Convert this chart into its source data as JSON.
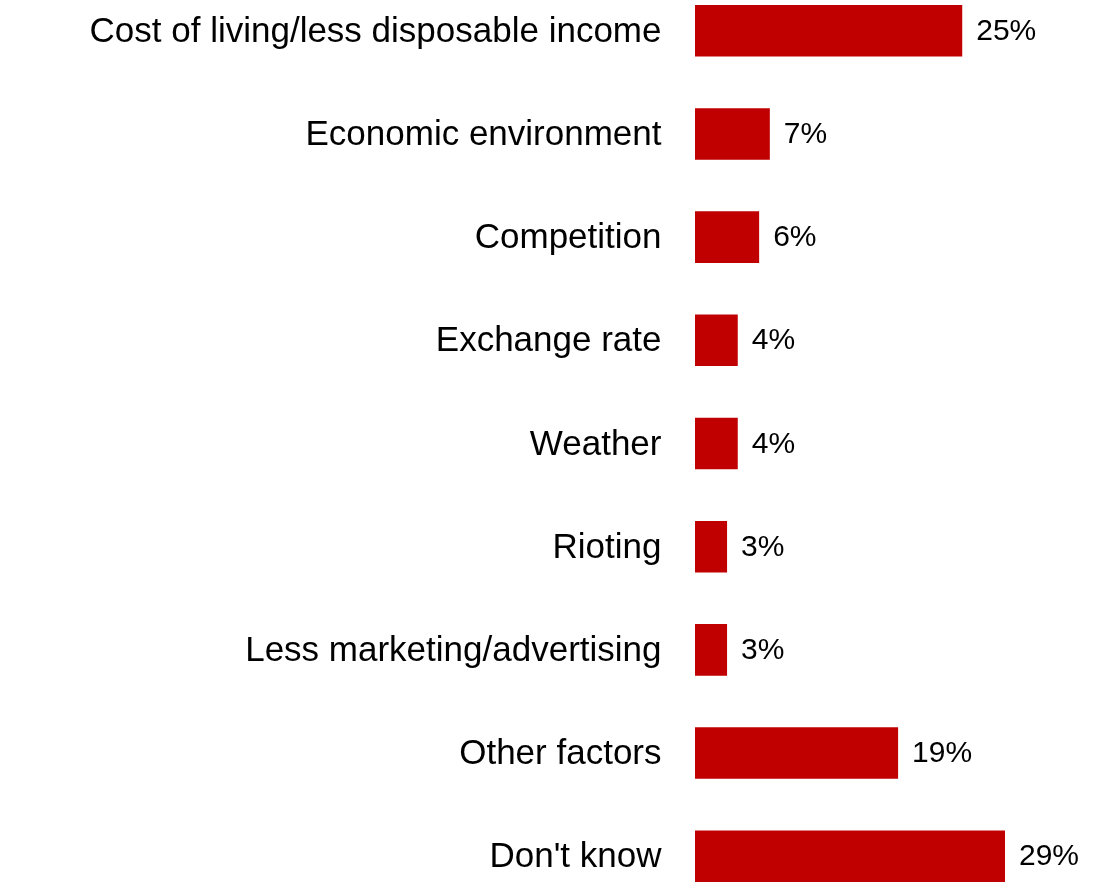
{
  "chart_data": {
    "type": "bar",
    "orientation": "horizontal",
    "color": "#c00000",
    "categories": [
      "Cost of living/less disposable income",
      "Economic environment",
      "Competition",
      "Exchange rate",
      "Weather",
      "Rioting",
      "Less marketing/advertising",
      "Other factors",
      "Don't know"
    ],
    "values": [
      25,
      7,
      6,
      4,
      4,
      3,
      3,
      19,
      29
    ],
    "value_labels": [
      "25%",
      "7%",
      "6%",
      "4%",
      "4%",
      "3%",
      "3%",
      "19%",
      "29%"
    ]
  }
}
